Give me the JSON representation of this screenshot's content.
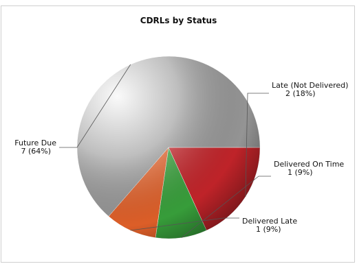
{
  "chart_data": {
    "type": "pie",
    "title": "CDRLs by Status",
    "slices": [
      {
        "label": "Late (Not Delivered)",
        "value": 2,
        "percent_label": "2 (18%)",
        "color": "#c9252b"
      },
      {
        "label": "Delivered On Time",
        "value": 1,
        "percent_label": "1 (9%)",
        "color": "#3aa53d"
      },
      {
        "label": "Delivered Late",
        "value": 1,
        "percent_label": "1 (9%)",
        "color": "#e8632a"
      },
      {
        "label": "Future Due",
        "value": 7,
        "percent_label": "7 (64%)",
        "color": "#9c9c9c"
      }
    ],
    "start_angle_deg": 0,
    "direction": "clockwise"
  }
}
